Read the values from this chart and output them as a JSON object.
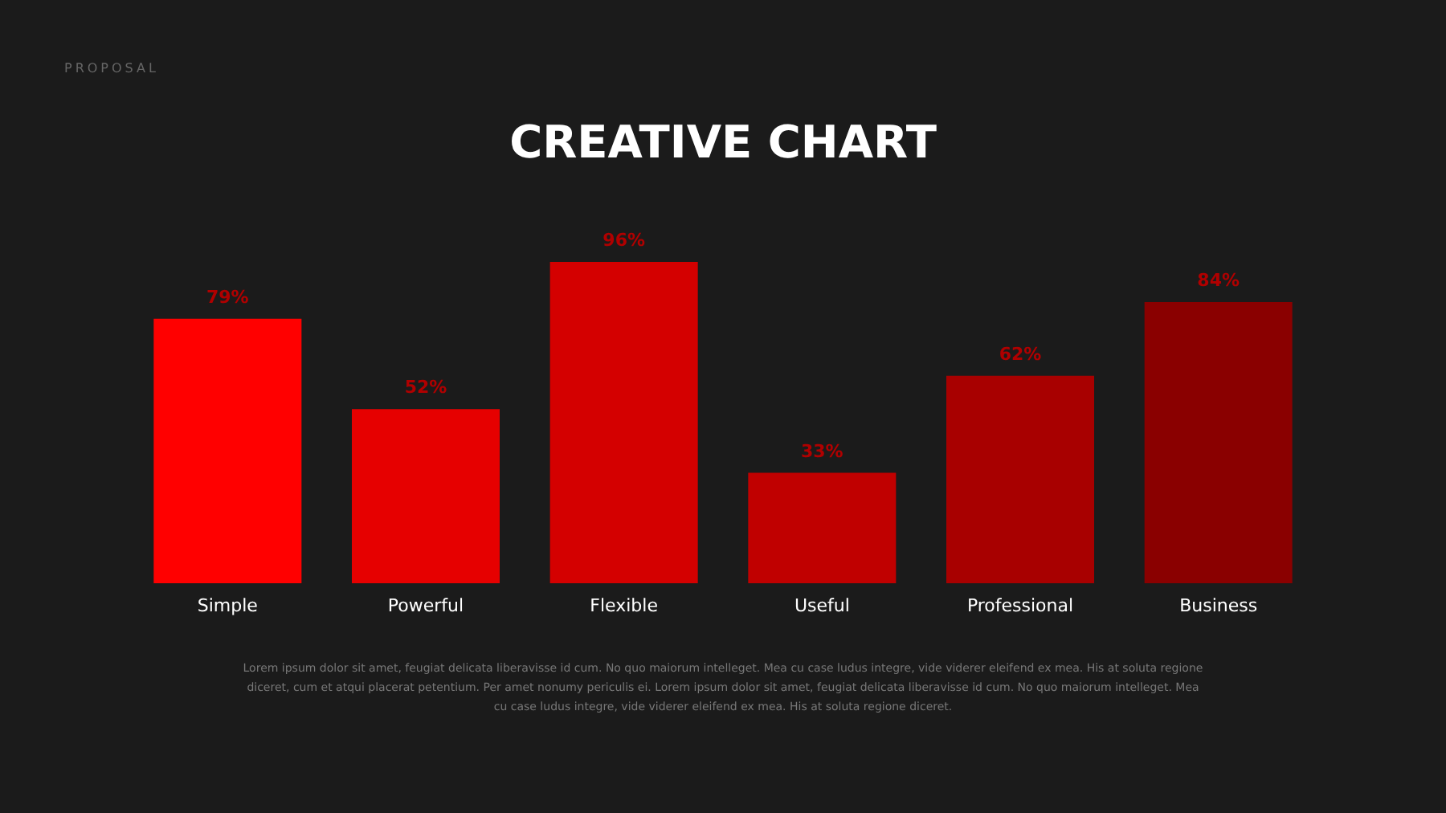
{
  "chart_data": {
    "type": "bar",
    "title": "CREATIVE CHART",
    "categories": [
      "Simple",
      "Powerful",
      "Flexible",
      "Useful",
      "Professional",
      "Business"
    ],
    "values": [
      79,
      52,
      96,
      33,
      62,
      84
    ],
    "colors": [
      "#ff0000",
      "#e60000",
      "#d40000",
      "#c00000",
      "#a80000",
      "#8a0000"
    ],
    "value_labels": [
      "79%",
      "52%",
      "96%",
      "33%",
      "62%",
      "84%"
    ],
    "annotations": [
      "PROPOSAL",
      "Lorem ipsum dolor sit amet, feugiat delicata liberavisse id cum. No quo maiorum intelleget. Mea cu case ludus integre, vide viderer eleifend ex mea. His at soluta regione diceret, cum et atqui placerat petentium. Per amet nonumy periculis ei. Lorem ipsum dolor sit amet, feugiat delicata liberavisse id cum. No quo maiorum intelleget. Mea cu case ludus integre, vide viderer eleifend ex mea. His at soluta regione diceret."
    ]
  }
}
